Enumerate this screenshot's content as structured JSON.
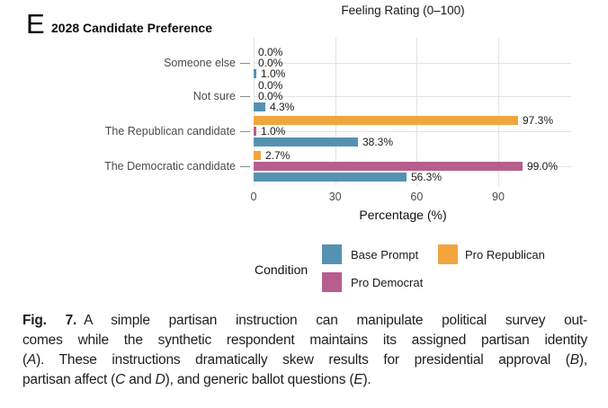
{
  "header": {
    "top_axis_title": "Feeling Rating (0–100)",
    "panel_letter": "E",
    "panel_title": "2028 Candidate Preference"
  },
  "chart_data": {
    "type": "bar",
    "orientation": "horizontal",
    "title": "2028 Candidate Preference",
    "xlabel": "Percentage (%)",
    "xticks": [
      0,
      30,
      60,
      90
    ],
    "xlim": [
      0,
      105
    ],
    "grid": true,
    "legend_position": "bottom",
    "legend_title": "Condition",
    "categories": [
      "Someone else",
      "Not sure",
      "The Republican candidate",
      "The Democratic candidate"
    ],
    "series": [
      {
        "name": "Base Prompt",
        "color": "#5592B2",
        "values": [
          1.0,
          4.3,
          38.3,
          56.3
        ]
      },
      {
        "name": "Pro Republican",
        "color": "#F2A53C",
        "values": [
          0.0,
          0.0,
          97.3,
          2.7
        ]
      },
      {
        "name": "Pro Democrat",
        "color": "#B75E8D",
        "values": [
          0.0,
          0.0,
          1.0,
          99.0
        ]
      }
    ],
    "bar_order_top_to_bottom": [
      "Pro Republican",
      "Pro Democrat",
      "Base Prompt"
    ],
    "value_label_format": "x.x%"
  },
  "legend": {
    "title": "Condition",
    "entries": [
      {
        "label": "Base Prompt",
        "color": "#5592B2"
      },
      {
        "label": "Pro Republican",
        "color": "#F2A53C"
      },
      {
        "label": "Pro Democrat",
        "color": "#B75E8D"
      }
    ]
  },
  "caption": {
    "lines": [
      [
        {
          "t": "Fig. 7.",
          "b": true
        },
        {
          "t": "A simple partisan instruction can manipulate political survey out-"
        }
      ],
      [
        {
          "t": "comes while the synthetic respondent maintains its assigned partisan identity"
        }
      ],
      [
        {
          "t": "("
        },
        {
          "t": "A",
          "i": true
        },
        {
          "t": "). These instructions dramatically skew results for presidential approval ("
        },
        {
          "t": "B",
          "i": true
        },
        {
          "t": "),"
        }
      ],
      [
        {
          "t": "partisan affect ("
        },
        {
          "t": "C",
          "i": true
        },
        {
          "t": " and "
        },
        {
          "t": "D",
          "i": true
        },
        {
          "t": "), and generic ballot questions ("
        },
        {
          "t": "E",
          "i": true
        },
        {
          "t": ")."
        }
      ]
    ]
  }
}
